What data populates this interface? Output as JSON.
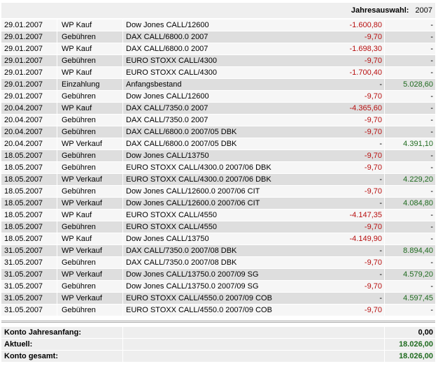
{
  "header": {
    "label": "Jahresauswahl:",
    "year": "2007"
  },
  "table": {
    "rows": [
      [
        "29.01.2007",
        "WP Kauf",
        "Dow Jones CALL/12600",
        "-1.600,80",
        "-"
      ],
      [
        "29.01.2007",
        "Gebühren",
        "DAX CALL/6800.0 2007",
        "-9,70",
        "-"
      ],
      [
        "29.01.2007",
        "WP Kauf",
        "DAX CALL/6800.0 2007",
        "-1.698,30",
        "-"
      ],
      [
        "29.01.2007",
        "Gebühren",
        "EURO STOXX CALL/4300",
        "-9,70",
        "-"
      ],
      [
        "29.01.2007",
        "WP Kauf",
        "EURO STOXX CALL/4300",
        "-1.700,40",
        "-"
      ],
      [
        "29.01.2007",
        "Einzahlung",
        "Anfangsbestand",
        "-",
        "5.028,60"
      ],
      [
        "29.01.2007",
        "Gebühren",
        "Dow Jones CALL/12600",
        "-9,70",
        "-"
      ],
      [
        "20.04.2007",
        "WP Kauf",
        "DAX CALL/7350.0 2007",
        "-4.365,60",
        "-"
      ],
      [
        "20.04.2007",
        "Gebühren",
        "DAX CALL/7350.0 2007",
        "-9,70",
        "-"
      ],
      [
        "20.04.2007",
        "Gebühren",
        "DAX CALL/6800.0 2007/05 DBK",
        "-9,70",
        "-"
      ],
      [
        "20.04.2007",
        "WP Verkauf",
        "DAX CALL/6800.0 2007/05 DBK",
        "-",
        "4.391,10"
      ],
      [
        "18.05.2007",
        "Gebühren",
        "Dow Jones CALL/13750",
        "-9,70",
        "-"
      ],
      [
        "18.05.2007",
        "Gebühren",
        "EURO STOXX CALL/4300.0 2007/06 DBK",
        "-9,70",
        "-"
      ],
      [
        "18.05.2007",
        "WP Verkauf",
        "EURO STOXX CALL/4300.0 2007/06 DBK",
        "-",
        "4.229,20"
      ],
      [
        "18.05.2007",
        "Gebühren",
        "Dow Jones CALL/12600.0 2007/06 CIT",
        "-9,70",
        "-"
      ],
      [
        "18.05.2007",
        "WP Verkauf",
        "Dow Jones CALL/12600.0 2007/06 CIT",
        "-",
        "4.084,80"
      ],
      [
        "18.05.2007",
        "WP Kauf",
        "EURO STOXX CALL/4550",
        "-4.147,35",
        "-"
      ],
      [
        "18.05.2007",
        "Gebühren",
        "EURO STOXX CALL/4550",
        "-9,70",
        "-"
      ],
      [
        "18.05.2007",
        "WP Kauf",
        "Dow Jones CALL/13750",
        "-4.149,90",
        "-"
      ],
      [
        "31.05.2007",
        "WP Verkauf",
        "DAX CALL/7350.0 2007/08 DBK",
        "-",
        "8.894,40"
      ],
      [
        "31.05.2007",
        "Gebühren",
        "DAX CALL/7350.0 2007/08 DBK",
        "-9,70",
        "-"
      ],
      [
        "31.05.2007",
        "WP Verkauf",
        "Dow Jones CALL/13750.0 2007/09 SG",
        "-",
        "4.579,20"
      ],
      [
        "31.05.2007",
        "Gebühren",
        "Dow Jones CALL/13750.0 2007/09 SG",
        "-9,70",
        "-"
      ],
      [
        "31.05.2007",
        "WP Verkauf",
        "EURO STOXX CALL/4550.0 2007/09 COB",
        "-",
        "4.597,45"
      ],
      [
        "31.05.2007",
        "Gebühren",
        "EURO STOXX CALL/4550.0 2007/09 COB",
        "-9,70",
        "-"
      ]
    ]
  },
  "summary": [
    {
      "label": "Konto Jahresanfang:",
      "value": "0,00",
      "color": "#000000"
    },
    {
      "label": "Aktuell:",
      "value": "18.026,00",
      "color": "#1f6b1f"
    },
    {
      "label": "Konto gesamt:",
      "value": "18.026,00",
      "color": "#1f6b1f"
    }
  ]
}
